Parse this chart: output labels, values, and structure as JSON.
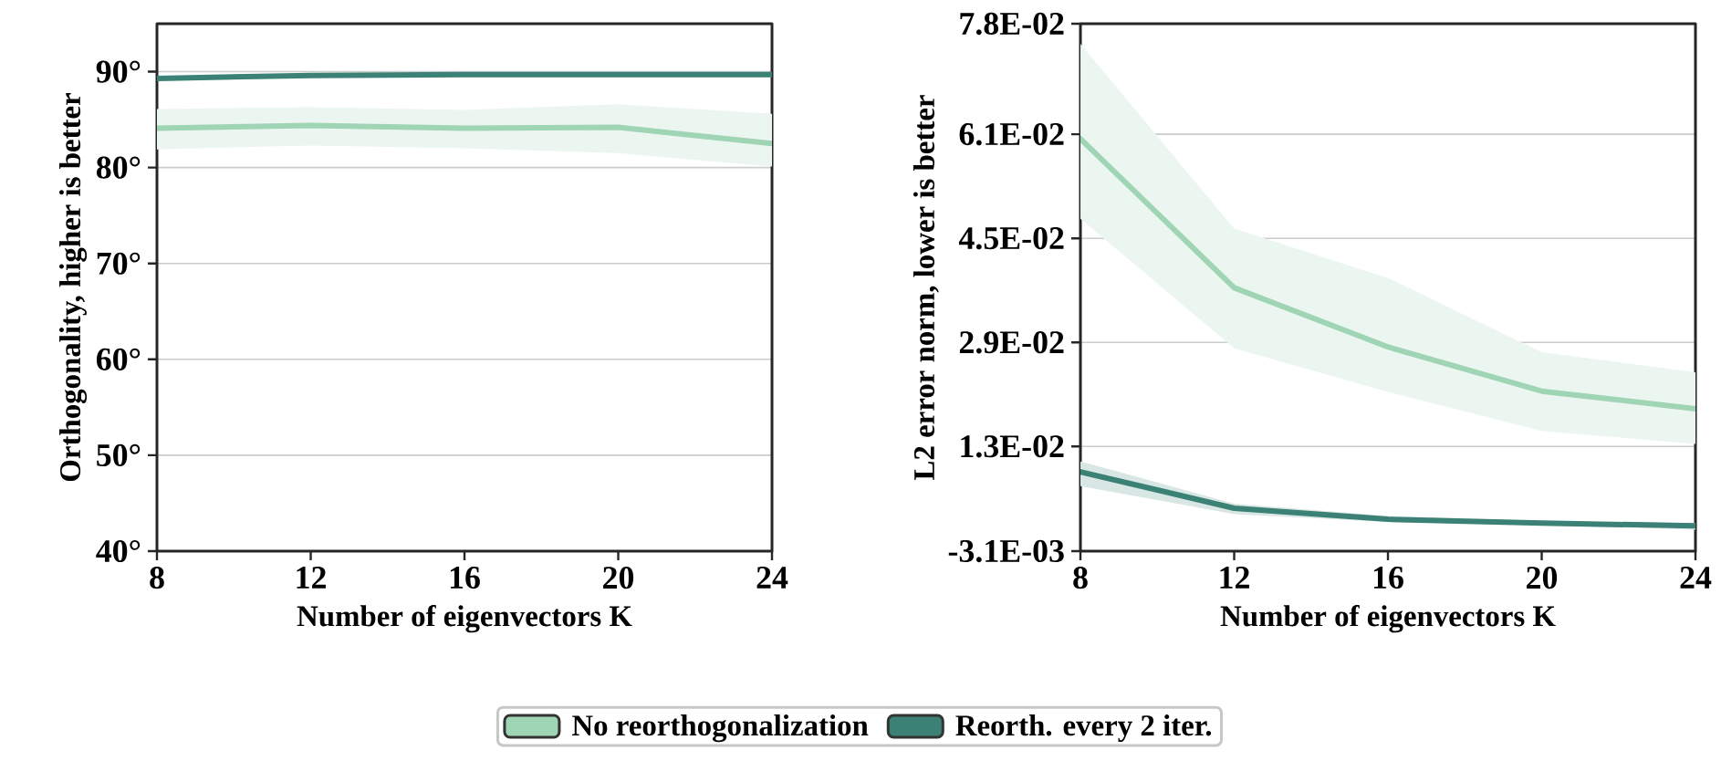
{
  "chart_data": [
    {
      "type": "line",
      "xlabel": "Number of eigenvectors K",
      "ylabel": "Orthogonality, higher is better",
      "x": [
        8,
        12,
        16,
        20,
        24
      ],
      "xlim": [
        8,
        24
      ],
      "xticks": [
        8,
        12,
        16,
        20,
        24
      ],
      "ylim": [
        40,
        95
      ],
      "yticks": [
        {
          "value": 40,
          "label": "40°"
        },
        {
          "value": 50,
          "label": "50°"
        },
        {
          "value": 60,
          "label": "60°"
        },
        {
          "value": 70,
          "label": "70°"
        },
        {
          "value": 80,
          "label": "80°"
        },
        {
          "value": 90,
          "label": "90°"
        }
      ],
      "grid": "y",
      "series": [
        {
          "color": "#9fd4b4",
          "values": [
            84.1,
            84.4,
            84.1,
            84.2,
            82.5
          ],
          "lower": [
            81.9,
            82.3,
            82.0,
            81.5,
            80.1
          ],
          "upper": [
            86.1,
            86.3,
            86.0,
            86.6,
            85.6
          ]
        },
        {
          "color": "#3b8176",
          "values": [
            89.3,
            89.6,
            89.7,
            89.7,
            89.7
          ]
        }
      ]
    },
    {
      "type": "line",
      "xlabel": "Number of eigenvectors K",
      "ylabel": "L2 error norm, lower is better",
      "x": [
        8,
        12,
        16,
        20,
        24
      ],
      "xlim": [
        8,
        24
      ],
      "xticks": [
        8,
        12,
        16,
        20,
        24
      ],
      "ylim": [
        -0.0031,
        0.078
      ],
      "yticks": [
        {
          "value": -0.0031,
          "label": "-3.1E-03"
        },
        {
          "value": 0.013,
          "label": "1.3E-02"
        },
        {
          "value": 0.029,
          "label": "2.9E-02"
        },
        {
          "value": 0.045,
          "label": "4.5E-02"
        },
        {
          "value": 0.061,
          "label": "6.1E-02"
        },
        {
          "value": 0.078,
          "label": "7.8E-02"
        }
      ],
      "grid": "y",
      "legend": "bottom",
      "series": [
        {
          "name": "No reorthogonalization",
          "color": "#9fd4b4",
          "values": [
            0.0603,
            0.0374,
            0.0283,
            0.0215,
            0.0188
          ],
          "lower": [
            0.048,
            0.0281,
            0.0214,
            0.0154,
            0.0134
          ],
          "upper": [
            0.0749,
            0.0465,
            0.0389,
            0.0275,
            0.0244
          ]
        },
        {
          "name": "Reorth. every 2 iter.",
          "color": "#3b8176",
          "values": [
            0.0091,
            0.0035,
            0.0018,
            0.0012,
            0.0008
          ],
          "lower": [
            0.0069,
            0.0026,
            0.0014,
            0.0009,
            0.0002
          ],
          "upper": [
            0.0107,
            0.0042,
            0.0023,
            0.0015,
            0.0012
          ]
        }
      ]
    }
  ]
}
